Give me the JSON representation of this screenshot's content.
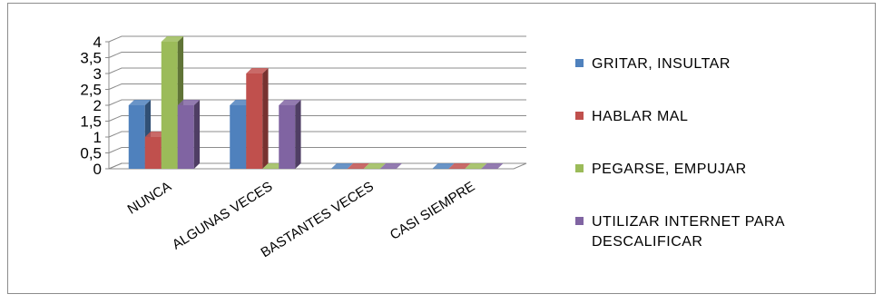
{
  "chart_data": {
    "type": "bar",
    "categories": [
      "NUNCA",
      "ALGUNAS VECES",
      "BASTANTES VECES",
      "CASI SIEMPRE"
    ],
    "series": [
      {
        "name": "GRITAR, INSULTAR",
        "values": [
          2,
          2,
          0,
          0
        ],
        "color": "#4f81bd"
      },
      {
        "name": "HABLAR MAL",
        "values": [
          1,
          3,
          0,
          0
        ],
        "color": "#c0504d"
      },
      {
        "name": "PEGARSE, EMPUJAR",
        "values": [
          4,
          0,
          0,
          0
        ],
        "color": "#9bbb59"
      },
      {
        "name": "UTILIZAR INTERNET PARA DESCALIFICAR",
        "values": [
          2,
          2,
          0,
          0
        ],
        "color": "#8064a2"
      }
    ],
    "yticks": [
      "0",
      "0,5",
      "1",
      "1,5",
      "2",
      "2,5",
      "3",
      "3,5",
      "4"
    ],
    "ylim": [
      0,
      4
    ],
    "grid": true,
    "legend": "right",
    "style": "3d-clustered-column"
  }
}
